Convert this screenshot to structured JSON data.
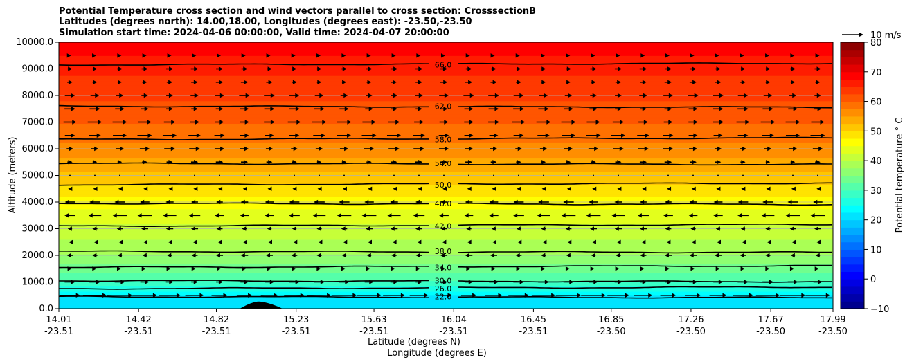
{
  "chart_data": {
    "type": "contour",
    "title": [
      "Potential Temperature cross section and wind vectors parallel to cross section: CrosssectionB",
      "Latitudes (degrees north): 14.00,18.00, Longitudes (degrees east): -23.50,-23.50",
      "Simulation start time: 2024-04-06 00:00:00, Valid time: 2024-04-07 20:00:00"
    ],
    "ylabel": "Altitude (meters)",
    "xlabel": "Latitude (degrees N)",
    "xlabel2": "Longitude (degrees E)",
    "ylim": [
      0,
      10000
    ],
    "yticks": [
      "0.0",
      "1000.0",
      "2000.0",
      "3000.0",
      "4000.0",
      "5000.0",
      "6000.0",
      "7000.0",
      "8000.0",
      "9000.0",
      "10000.0"
    ],
    "yticks_values": [
      0,
      1000,
      2000,
      3000,
      4000,
      5000,
      6000,
      7000,
      8000,
      9000,
      10000
    ],
    "xlim": [
      14.01,
      17.99
    ],
    "xticks_lat": [
      "14.01",
      "14.42",
      "14.82",
      "15.23",
      "15.63",
      "16.04",
      "16.45",
      "16.85",
      "17.26",
      "17.67",
      "17.99"
    ],
    "xticks_lon": [
      "-23.51",
      "-23.51",
      "-23.51",
      "-23.51",
      "-23.51",
      "-23.51",
      "-23.51",
      "-23.50",
      "-23.50",
      "-23.50",
      "-23.50"
    ],
    "xticks_values": [
      14.01,
      14.42,
      14.82,
      15.23,
      15.63,
      16.04,
      16.45,
      16.85,
      17.26,
      17.67,
      17.99
    ],
    "contours": [
      {
        "level": "22.0",
        "altitude": 450
      },
      {
        "level": "26.0",
        "altitude": 750
      },
      {
        "level": "30.0",
        "altitude": 1050
      },
      {
        "level": "34.0",
        "altitude": 1550
      },
      {
        "level": "38.0",
        "altitude": 2150
      },
      {
        "level": "42.0",
        "altitude": 3100
      },
      {
        "level": "46.0",
        "altitude": 3950
      },
      {
        "level": "50.0",
        "altitude": 4650
      },
      {
        "level": "54.0",
        "altitude": 5450
      },
      {
        "level": "58.0",
        "altitude": 6350
      },
      {
        "level": "62.0",
        "altitude": 7600
      },
      {
        "level": "66.0",
        "altitude": 9150
      }
    ],
    "colorbar": {
      "label": "Potential temperature $^\\circ$C",
      "min": -10,
      "max": 80,
      "ticks": [
        "−10",
        "0",
        "10",
        "20",
        "30",
        "40",
        "50",
        "60",
        "70",
        "80"
      ],
      "tick_values": [
        -10,
        0,
        10,
        20,
        30,
        40,
        50,
        60,
        70,
        80
      ]
    },
    "quiver_key": {
      "label": "10 m/s",
      "speed": 10
    },
    "wind_profile": [
      {
        "altitude": 500,
        "u": 7
      },
      {
        "altitude": 1000,
        "u": 3
      },
      {
        "altitude": 1500,
        "u": 1
      },
      {
        "altitude": 2000,
        "u": -2
      },
      {
        "altitude": 2500,
        "u": -1
      },
      {
        "altitude": 3000,
        "u": -2
      },
      {
        "altitude": 3500,
        "u": -4
      },
      {
        "altitude": 4000,
        "u": -3
      },
      {
        "altitude": 4500,
        "u": -1
      },
      {
        "altitude": 5000,
        "u": 0
      },
      {
        "altitude": 5500,
        "u": 2
      },
      {
        "altitude": 6000,
        "u": 3
      },
      {
        "altitude": 6500,
        "u": 4
      },
      {
        "altitude": 7000,
        "u": 4
      },
      {
        "altitude": 7500,
        "u": 3
      },
      {
        "altitude": 8000,
        "u": 3
      },
      {
        "altitude": 8500,
        "u": 2
      },
      {
        "altitude": 9000,
        "u": 2
      },
      {
        "altitude": 9500,
        "u": 1
      }
    ]
  }
}
